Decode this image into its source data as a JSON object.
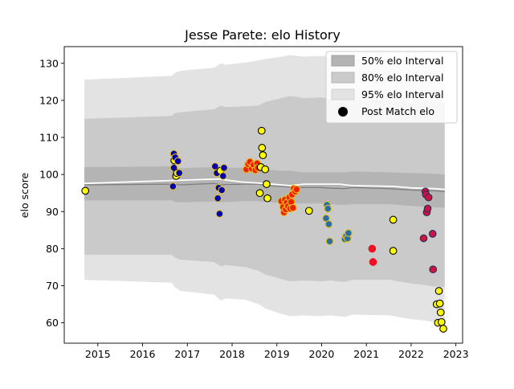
{
  "chart_data": {
    "type": "scatter",
    "title": "Jesse Parete: elo History",
    "xlabel": "",
    "ylabel": "elo score",
    "xlim": [
      2014.25,
      2023.15
    ],
    "ylim": [
      54.5,
      134.5
    ],
    "xticks": [
      2015,
      2016,
      2017,
      2018,
      2019,
      2020,
      2021,
      2022,
      2023
    ],
    "yticks": [
      60,
      70,
      80,
      90,
      100,
      110,
      120,
      130
    ],
    "legend": {
      "placement": "top-right",
      "entries": [
        "50% elo Interval",
        "80% elo Interval",
        "95% elo Interval",
        "Post Match elo"
      ]
    },
    "colors": {
      "band95": "#e3e3e3",
      "band80": "#cacaca",
      "band50": "#b4b4b4",
      "median": "#7f7f7f",
      "mean": "#ffffff"
    },
    "bands": {
      "x": [
        2014.7,
        2016.65,
        2016.72,
        2016.85,
        2017.6,
        2017.75,
        2017.85,
        2018.3,
        2018.6,
        2018.75,
        2019.1,
        2019.3,
        2019.6,
        2020.0,
        2020.2,
        2020.5,
        2020.7,
        2021.5,
        2022.0,
        2022.3,
        2022.5,
        2022.75
      ],
      "median": [
        97.2,
        97.4,
        97.3,
        97.2,
        97.6,
        97.2,
        97.3,
        97.4,
        97.4,
        97.0,
        96.8,
        96.6,
        96.5,
        96.5,
        96.3,
        96.2,
        96.5,
        96.2,
        95.8,
        95.7,
        95.6,
        95.4
      ],
      "p50": [
        [
          93.0,
          102.0
        ],
        [
          93.0,
          102.2
        ],
        [
          92.6,
          101.8
        ],
        [
          92.5,
          101.7
        ],
        [
          92.7,
          102.0
        ],
        [
          92.5,
          101.6
        ],
        [
          92.6,
          101.8
        ],
        [
          92.8,
          101.8
        ],
        [
          92.8,
          101.8
        ],
        [
          92.6,
          101.4
        ],
        [
          92.3,
          101.0
        ],
        [
          92.3,
          101.0
        ],
        [
          92.2,
          100.6
        ],
        [
          92.2,
          100.6
        ],
        [
          92.0,
          100.6
        ],
        [
          91.8,
          100.6
        ],
        [
          92.0,
          100.8
        ],
        [
          92.0,
          100.6
        ],
        [
          91.5,
          100.4
        ],
        [
          91.3,
          100.3
        ],
        [
          91.2,
          100.2
        ],
        [
          91.0,
          100.0
        ]
      ],
      "p80": [
        [
          78.4,
          115.0
        ],
        [
          78.4,
          115.8
        ],
        [
          77.6,
          116.6
        ],
        [
          77.0,
          116.8
        ],
        [
          76.4,
          117.6
        ],
        [
          75.2,
          118.6
        ],
        [
          75.6,
          118.2
        ],
        [
          75.0,
          118.4
        ],
        [
          74.0,
          118.6
        ],
        [
          73.0,
          119.6
        ],
        [
          71.8,
          120.6
        ],
        [
          71.2,
          121.2
        ],
        [
          71.4,
          120.6
        ],
        [
          71.2,
          120.8
        ],
        [
          71.4,
          120.4
        ],
        [
          71.0,
          120.4
        ],
        [
          71.6,
          120.2
        ],
        [
          71.6,
          119.8
        ],
        [
          70.6,
          119.4
        ],
        [
          70.2,
          119.6
        ],
        [
          69.8,
          119.6
        ],
        [
          69.6,
          119.2
        ]
      ],
      "p95": [
        [
          71.6,
          125.6
        ],
        [
          70.8,
          126.6
        ],
        [
          69.6,
          127.4
        ],
        [
          68.6,
          128.0
        ],
        [
          67.6,
          128.8
        ],
        [
          66.0,
          130.0
        ],
        [
          66.6,
          129.6
        ],
        [
          66.2,
          130.2
        ],
        [
          65.0,
          130.8
        ],
        [
          63.8,
          131.2
        ],
        [
          62.4,
          131.8
        ],
        [
          61.8,
          132.2
        ],
        [
          62.0,
          131.8
        ],
        [
          61.8,
          132.0
        ],
        [
          62.0,
          131.6
        ],
        [
          61.6,
          131.4
        ],
        [
          62.2,
          131.2
        ],
        [
          62.0,
          131.2
        ],
        [
          61.0,
          130.8
        ],
        [
          60.6,
          130.8
        ],
        [
          60.2,
          130.8
        ],
        [
          60.0,
          130.4
        ]
      ]
    },
    "mean_line": {
      "x": [
        2014.7,
        2016.7,
        2017.7,
        2018.2,
        2018.7,
        2019.3,
        2019.6,
        2020.4,
        2020.7,
        2021.6,
        2022.0,
        2022.5,
        2022.75
      ],
      "y": [
        97.6,
        98.4,
        98.8,
        98.0,
        97.6,
        97.0,
        97.4,
        97.4,
        97.0,
        96.8,
        96.4,
        96.2,
        96.0
      ]
    },
    "points": [
      {
        "x": 2014.72,
        "y": 95.6,
        "fill": "#ffff00",
        "edge": "#000000"
      },
      {
        "x": 2016.68,
        "y": 96.8,
        "fill": "#0000aa",
        "edge": "#e8c020"
      },
      {
        "x": 2016.7,
        "y": 105.6,
        "fill": "#0000aa",
        "edge": "#e8c020"
      },
      {
        "x": 2016.7,
        "y": 101.8,
        "fill": "#0000aa",
        "edge": "#e8c020"
      },
      {
        "x": 2016.71,
        "y": 103.8,
        "fill": "#ffff00",
        "edge": "#000000"
      },
      {
        "x": 2016.73,
        "y": 104.6,
        "fill": "#0000aa",
        "edge": "#e8c020"
      },
      {
        "x": 2016.75,
        "y": 99.6,
        "fill": "#ffff00",
        "edge": "#000000"
      },
      {
        "x": 2016.77,
        "y": 100.4,
        "fill": "#ffff00",
        "edge": "#000000"
      },
      {
        "x": 2016.79,
        "y": 103.6,
        "fill": "#0000aa",
        "edge": "#e8c020"
      },
      {
        "x": 2016.82,
        "y": 100.4,
        "fill": "#0000aa",
        "edge": "#e8c020"
      },
      {
        "x": 2017.62,
        "y": 102.2,
        "fill": "#0000aa",
        "edge": "#e8c020"
      },
      {
        "x": 2017.66,
        "y": 100.4,
        "fill": "#0000aa",
        "edge": "#e8c020"
      },
      {
        "x": 2017.68,
        "y": 93.6,
        "fill": "#0000aa",
        "edge": "#e8c020"
      },
      {
        "x": 2017.7,
        "y": 96.4,
        "fill": "#0000aa",
        "edge": "#e8c020"
      },
      {
        "x": 2017.72,
        "y": 89.4,
        "fill": "#0000aa",
        "edge": "#e8c020"
      },
      {
        "x": 2017.74,
        "y": 101.0,
        "fill": "#ffff00",
        "edge": "#000000"
      },
      {
        "x": 2017.77,
        "y": 95.8,
        "fill": "#0000aa",
        "edge": "#e8c020"
      },
      {
        "x": 2017.8,
        "y": 99.6,
        "fill": "#0000aa",
        "edge": "#e8c020"
      },
      {
        "x": 2017.82,
        "y": 101.8,
        "fill": "#0000aa",
        "edge": "#e8c020"
      },
      {
        "x": 2018.32,
        "y": 101.4,
        "fill": "#ee2200",
        "edge": "#e8c020"
      },
      {
        "x": 2018.36,
        "y": 102.8,
        "fill": "#ee2200",
        "edge": "#e8c020"
      },
      {
        "x": 2018.4,
        "y": 103.4,
        "fill": "#ee2200",
        "edge": "#e8c020"
      },
      {
        "x": 2018.44,
        "y": 101.6,
        "fill": "#ee2200",
        "edge": "#e8c020"
      },
      {
        "x": 2018.48,
        "y": 102.6,
        "fill": "#ee2200",
        "edge": "#e8c020"
      },
      {
        "x": 2018.52,
        "y": 101.2,
        "fill": "#ee2200",
        "edge": "#e8c020"
      },
      {
        "x": 2018.56,
        "y": 103.0,
        "fill": "#ee2200",
        "edge": "#e8c020"
      },
      {
        "x": 2018.58,
        "y": 101.8,
        "fill": "#ee2200",
        "edge": "#e8c020"
      },
      {
        "x": 2018.62,
        "y": 95.0,
        "fill": "#ffff00",
        "edge": "#000000"
      },
      {
        "x": 2018.64,
        "y": 102.0,
        "fill": "#ffff00",
        "edge": "#000000"
      },
      {
        "x": 2018.66,
        "y": 111.8,
        "fill": "#ffff00",
        "edge": "#000000"
      },
      {
        "x": 2018.67,
        "y": 107.2,
        "fill": "#ffff00",
        "edge": "#000000"
      },
      {
        "x": 2018.69,
        "y": 105.2,
        "fill": "#ffff00",
        "edge": "#000000"
      },
      {
        "x": 2018.74,
        "y": 101.4,
        "fill": "#ffff00",
        "edge": "#000000"
      },
      {
        "x": 2018.77,
        "y": 97.4,
        "fill": "#ffff00",
        "edge": "#000000"
      },
      {
        "x": 2018.79,
        "y": 93.6,
        "fill": "#ffff00",
        "edge": "#000000"
      },
      {
        "x": 2019.1,
        "y": 92.8,
        "fill": "#ee2200",
        "edge": "#e8c020"
      },
      {
        "x": 2019.14,
        "y": 91.2,
        "fill": "#ee2200",
        "edge": "#e8c020"
      },
      {
        "x": 2019.16,
        "y": 89.8,
        "fill": "#ee2200",
        "edge": "#e8c020"
      },
      {
        "x": 2019.18,
        "y": 93.2,
        "fill": "#ee2200",
        "edge": "#e8c020"
      },
      {
        "x": 2019.2,
        "y": 90.6,
        "fill": "#ee2200",
        "edge": "#e8c020"
      },
      {
        "x": 2019.22,
        "y": 92.4,
        "fill": "#ee2200",
        "edge": "#e8c020"
      },
      {
        "x": 2019.25,
        "y": 91.4,
        "fill": "#ee2200",
        "edge": "#e8c020"
      },
      {
        "x": 2019.28,
        "y": 93.8,
        "fill": "#ee2200",
        "edge": "#e8c020"
      },
      {
        "x": 2019.3,
        "y": 90.8,
        "fill": "#ee2200",
        "edge": "#e8c020"
      },
      {
        "x": 2019.32,
        "y": 92.6,
        "fill": "#ee2200",
        "edge": "#e8c020"
      },
      {
        "x": 2019.34,
        "y": 94.6,
        "fill": "#ee2200",
        "edge": "#e8c020"
      },
      {
        "x": 2019.36,
        "y": 91.0,
        "fill": "#ee2200",
        "edge": "#e8c020"
      },
      {
        "x": 2019.38,
        "y": 96.2,
        "fill": "#ee2200",
        "edge": "#e8c020"
      },
      {
        "x": 2019.41,
        "y": 95.4,
        "fill": "#ee2200",
        "edge": "#e8c020"
      },
      {
        "x": 2019.44,
        "y": 96.0,
        "fill": "#ee2200",
        "edge": "#e8c020"
      },
      {
        "x": 2019.72,
        "y": 90.2,
        "fill": "#ffff00",
        "edge": "#000000"
      },
      {
        "x": 2020.1,
        "y": 88.2,
        "fill": "#2a6ea8",
        "edge": "#e8c020"
      },
      {
        "x": 2020.12,
        "y": 91.8,
        "fill": "#2a6ea8",
        "edge": "#e8c020"
      },
      {
        "x": 2020.14,
        "y": 90.8,
        "fill": "#2a6ea8",
        "edge": "#e8c020"
      },
      {
        "x": 2020.16,
        "y": 86.6,
        "fill": "#2a6ea8",
        "edge": "#e8c020"
      },
      {
        "x": 2020.18,
        "y": 82.0,
        "fill": "#2a6ea8",
        "edge": "#e8c020"
      },
      {
        "x": 2020.52,
        "y": 82.6,
        "fill": "#2a6ea8",
        "edge": "#e8c020"
      },
      {
        "x": 2020.55,
        "y": 83.4,
        "fill": "#2a6ea8",
        "edge": "#e8c020"
      },
      {
        "x": 2020.58,
        "y": 82.8,
        "fill": "#2a6ea8",
        "edge": "#e8c020"
      },
      {
        "x": 2020.6,
        "y": 84.2,
        "fill": "#2a6ea8",
        "edge": "#e8c020"
      },
      {
        "x": 2021.13,
        "y": 80.0,
        "fill": "#ee1122",
        "edge": "#ee1122"
      },
      {
        "x": 2021.15,
        "y": 76.4,
        "fill": "#ee1122",
        "edge": "#ee1122"
      },
      {
        "x": 2021.6,
        "y": 87.8,
        "fill": "#ffff00",
        "edge": "#000000"
      },
      {
        "x": 2021.6,
        "y": 79.4,
        "fill": "#ffff00",
        "edge": "#000000"
      },
      {
        "x": 2022.28,
        "y": 82.8,
        "fill": "#cc1144",
        "edge": "#223355"
      },
      {
        "x": 2022.32,
        "y": 95.4,
        "fill": "#cc1144",
        "edge": "#223355"
      },
      {
        "x": 2022.33,
        "y": 94.6,
        "fill": "#cc1144",
        "edge": "#223355"
      },
      {
        "x": 2022.35,
        "y": 89.8,
        "fill": "#cc1144",
        "edge": "#223355"
      },
      {
        "x": 2022.37,
        "y": 90.8,
        "fill": "#cc1144",
        "edge": "#223355"
      },
      {
        "x": 2022.39,
        "y": 93.8,
        "fill": "#cc1144",
        "edge": "#223355"
      },
      {
        "x": 2022.48,
        "y": 84.0,
        "fill": "#cc1144",
        "edge": "#223355"
      },
      {
        "x": 2022.49,
        "y": 74.4,
        "fill": "#cc1144",
        "edge": "#223355"
      },
      {
        "x": 2022.57,
        "y": 65.0,
        "fill": "#ffff00",
        "edge": "#000000"
      },
      {
        "x": 2022.6,
        "y": 60.0,
        "fill": "#ffff00",
        "edge": "#000000"
      },
      {
        "x": 2022.62,
        "y": 68.6,
        "fill": "#ffff00",
        "edge": "#000000"
      },
      {
        "x": 2022.64,
        "y": 65.2,
        "fill": "#ffff00",
        "edge": "#000000"
      },
      {
        "x": 2022.66,
        "y": 62.8,
        "fill": "#ffff00",
        "edge": "#000000"
      },
      {
        "x": 2022.68,
        "y": 60.2,
        "fill": "#ffff00",
        "edge": "#000000"
      },
      {
        "x": 2022.72,
        "y": 58.4,
        "fill": "#ffff00",
        "edge": "#000000"
      }
    ]
  }
}
